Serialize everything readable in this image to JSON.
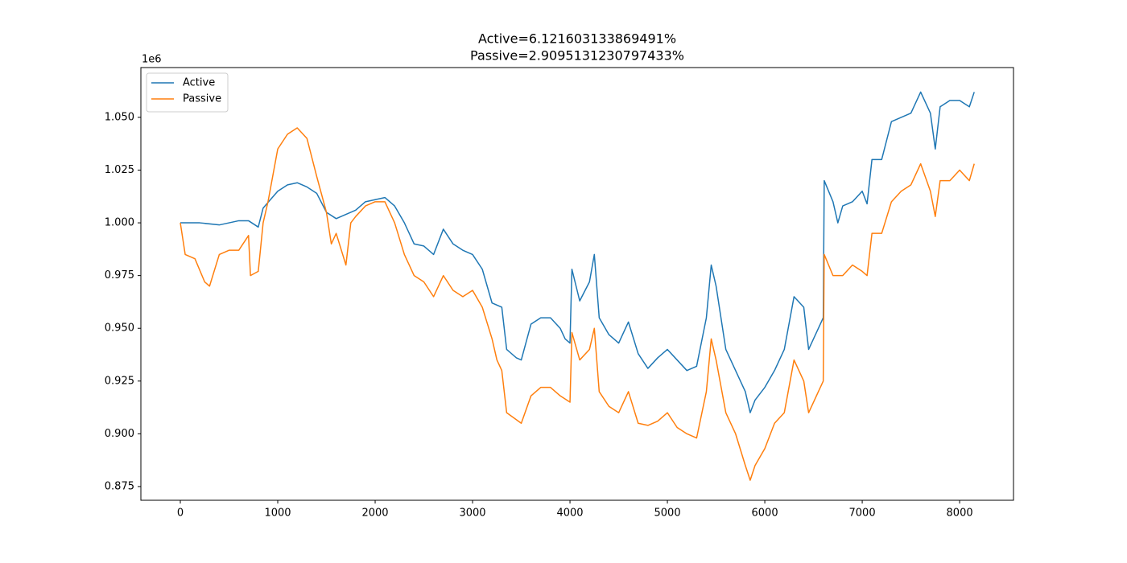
{
  "chart_data": {
    "type": "line",
    "title": [
      "Active=6.121603133869491%",
      "Passive=2.9095131230797433%"
    ],
    "y_offset_label": "1e6",
    "xlim": [
      -405,
      8553
    ],
    "ylim": [
      0.8685,
      1.0736
    ],
    "xticks": [
      0,
      1000,
      2000,
      3000,
      4000,
      5000,
      6000,
      7000,
      8000
    ],
    "yticks": [
      {
        "value": 0.875,
        "label": "0.875"
      },
      {
        "value": 0.9,
        "label": "0.900"
      },
      {
        "value": 0.925,
        "label": "0.925"
      },
      {
        "value": 0.95,
        "label": "0.950"
      },
      {
        "value": 0.975,
        "label": "0.975"
      },
      {
        "value": 1.0,
        "label": "1.000"
      },
      {
        "value": 1.025,
        "label": "1.025"
      },
      {
        "value": 1.05,
        "label": "1.050"
      }
    ],
    "grid": false,
    "legend": "upper left",
    "series": [
      {
        "name": "Active",
        "color": "#1f77b4",
        "x": [
          0,
          200,
          400,
          600,
          700,
          800,
          850,
          1000,
          1100,
          1200,
          1300,
          1400,
          1500,
          1600,
          1700,
          1800,
          1900,
          2000,
          2100,
          2200,
          2300,
          2400,
          2500,
          2600,
          2700,
          2800,
          2900,
          3000,
          3100,
          3200,
          3300,
          3350,
          3450,
          3500,
          3600,
          3700,
          3800,
          3900,
          3950,
          4000,
          4020,
          4100,
          4200,
          4250,
          4300,
          4400,
          4500,
          4600,
          4700,
          4800,
          4900,
          5000,
          5100,
          5200,
          5300,
          5400,
          5450,
          5500,
          5600,
          5700,
          5800,
          5850,
          5900,
          6000,
          6100,
          6200,
          6300,
          6400,
          6450,
          6500,
          6600,
          6610,
          6700,
          6750,
          6800,
          6900,
          7000,
          7050,
          7100,
          7200,
          7300,
          7400,
          7500,
          7600,
          7700,
          7750,
          7800,
          7900,
          8000,
          8100,
          8150
        ],
        "values": [
          1.0,
          1.0,
          0.999,
          1.001,
          1.001,
          0.998,
          1.007,
          1.015,
          1.018,
          1.019,
          1.017,
          1.014,
          1.005,
          1.002,
          1.004,
          1.006,
          1.01,
          1.011,
          1.012,
          1.008,
          1.0,
          0.99,
          0.989,
          0.985,
          0.997,
          0.99,
          0.987,
          0.985,
          0.978,
          0.962,
          0.96,
          0.94,
          0.936,
          0.935,
          0.952,
          0.955,
          0.955,
          0.95,
          0.945,
          0.943,
          0.978,
          0.963,
          0.972,
          0.985,
          0.955,
          0.947,
          0.943,
          0.953,
          0.938,
          0.931,
          0.936,
          0.94,
          0.935,
          0.93,
          0.932,
          0.955,
          0.98,
          0.97,
          0.94,
          0.93,
          0.92,
          0.91,
          0.916,
          0.922,
          0.93,
          0.94,
          0.965,
          0.96,
          0.94,
          0.945,
          0.955,
          1.02,
          1.01,
          1.0,
          1.008,
          1.01,
          1.015,
          1.009,
          1.03,
          1.03,
          1.048,
          1.05,
          1.052,
          1.062,
          1.052,
          1.035,
          1.055,
          1.058,
          1.058,
          1.055,
          1.062
        ]
      },
      {
        "name": "Passive",
        "color": "#ff7f0e",
        "x": [
          0,
          50,
          150,
          250,
          300,
          400,
          500,
          600,
          700,
          720,
          800,
          850,
          900,
          1000,
          1100,
          1200,
          1300,
          1400,
          1500,
          1550,
          1600,
          1700,
          1750,
          1800,
          1900,
          2000,
          2100,
          2200,
          2300,
          2400,
          2500,
          2600,
          2700,
          2800,
          2900,
          3000,
          3100,
          3200,
          3250,
          3300,
          3350,
          3500,
          3600,
          3700,
          3800,
          3900,
          4000,
          4020,
          4100,
          4200,
          4250,
          4300,
          4400,
          4500,
          4600,
          4700,
          4800,
          4900,
          5000,
          5100,
          5200,
          5300,
          5400,
          5450,
          5500,
          5600,
          5700,
          5800,
          5850,
          5900,
          6000,
          6100,
          6200,
          6300,
          6400,
          6450,
          6500,
          6600,
          6610,
          6700,
          6800,
          6900,
          7000,
          7050,
          7100,
          7200,
          7300,
          7400,
          7500,
          7600,
          7700,
          7750,
          7800,
          7900,
          8000,
          8100,
          8150
        ],
        "values": [
          1.0,
          0.985,
          0.983,
          0.972,
          0.97,
          0.985,
          0.987,
          0.987,
          0.994,
          0.975,
          0.977,
          1.0,
          1.01,
          1.035,
          1.042,
          1.045,
          1.04,
          1.022,
          1.005,
          0.99,
          0.995,
          0.98,
          1.0,
          1.003,
          1.008,
          1.01,
          1.01,
          1.0,
          0.985,
          0.975,
          0.972,
          0.965,
          0.975,
          0.968,
          0.965,
          0.968,
          0.96,
          0.945,
          0.935,
          0.93,
          0.91,
          0.905,
          0.918,
          0.922,
          0.922,
          0.918,
          0.915,
          0.948,
          0.935,
          0.94,
          0.95,
          0.92,
          0.913,
          0.91,
          0.92,
          0.905,
          0.904,
          0.906,
          0.91,
          0.903,
          0.9,
          0.898,
          0.92,
          0.945,
          0.935,
          0.91,
          0.9,
          0.885,
          0.878,
          0.885,
          0.893,
          0.905,
          0.91,
          0.935,
          0.925,
          0.91,
          0.915,
          0.925,
          0.985,
          0.975,
          0.975,
          0.98,
          0.977,
          0.975,
          0.995,
          0.995,
          1.01,
          1.015,
          1.018,
          1.028,
          1.015,
          1.003,
          1.02,
          1.02,
          1.025,
          1.02,
          1.028
        ]
      }
    ]
  }
}
